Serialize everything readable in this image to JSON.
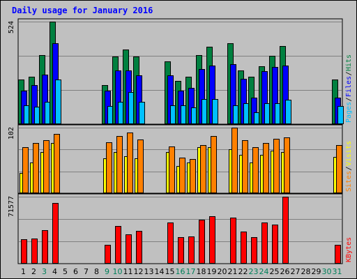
{
  "chart_data": {
    "type": "bar",
    "title": "Daily usage for January 2016",
    "categories": [
      "1",
      "2",
      "3",
      "4",
      "5",
      "6",
      "7",
      "8",
      "9",
      "10",
      "11",
      "12",
      "13",
      "14",
      "15",
      "16",
      "17",
      "18",
      "19",
      "20",
      "21",
      "22",
      "23",
      "24",
      "25",
      "26",
      "27",
      "28",
      "29",
      "30",
      "31"
    ],
    "weekend_days": [
      "3",
      "9",
      "10",
      "16",
      "17",
      "23",
      "24",
      "30",
      "31"
    ],
    "panels": [
      {
        "id": "hits-files-pages",
        "ymax_label": "524",
        "ymax": 524,
        "series": [
          {
            "name": "Hits",
            "color": "#008040",
            "values": [
              228,
              244,
              352,
              524,
              0,
              0,
              0,
              0,
              201,
              344,
              380,
              344,
              0,
              0,
              322,
              222,
              244,
              352,
              396,
              0,
              414,
              273,
              244,
              296,
              350,
              401,
              0,
              0,
              0,
              0,
              228
            ]
          },
          {
            "name": "Files",
            "color": "#0000ff",
            "values": [
              170,
              198,
              253,
              415,
              0,
              0,
              0,
              0,
              170,
              276,
              276,
              249,
              0,
              0,
              250,
              170,
              186,
              280,
              301,
              0,
              307,
              230,
              135,
              270,
              294,
              300,
              0,
              0,
              0,
              0,
              135
            ]
          },
          {
            "name": "Pages",
            "color": "#00c0ff",
            "values": [
              96,
              90,
              113,
              228,
              0,
              0,
              0,
              0,
              93,
              113,
              164,
              113,
              0,
              0,
              98,
              98,
              84,
              130,
              130,
              0,
              96,
              107,
              62,
              107,
              107,
              123,
              0,
              0,
              0,
              0,
              92
            ]
          }
        ]
      },
      {
        "id": "visits-sites",
        "ymax_label": "102",
        "ymax": 102,
        "series": [
          {
            "name": "Visits",
            "color": "#ffff00",
            "values": [
              32,
              48,
              64,
              78,
              0,
              0,
              0,
              0,
              54,
              64,
              57,
              54,
              0,
              0,
              64,
              42,
              48,
              72,
              72,
              0,
              68,
              60,
              48,
              60,
              66,
              64,
              0,
              0,
              0,
              0,
              56
            ]
          },
          {
            "name": "Sites",
            "color": "#ff8000",
            "values": [
              72,
              78,
              83,
              92,
              0,
              0,
              0,
              0,
              79,
              89,
              94,
              84,
              0,
              0,
              73,
              55,
              53,
              75,
              89,
              0,
              102,
              82,
              72,
              78,
              85,
              87,
              0,
              0,
              0,
              0,
              75
            ]
          }
        ]
      },
      {
        "id": "kbytes",
        "ymax_label": "71577",
        "ymax": 71577,
        "series": [
          {
            "name": "KBytes",
            "color": "#ff0000",
            "values": [
              26000,
              27000,
              36000,
              65000,
              0,
              0,
              0,
              0,
              20000,
              40000,
              31000,
              35000,
              0,
              0,
              44000,
              28000,
              29000,
              47000,
              51000,
              0,
              49000,
              34000,
              28000,
              44000,
              42000,
              71577,
              0,
              0,
              0,
              0,
              20000
            ]
          }
        ]
      }
    ],
    "grid": true,
    "legend_position": "right"
  }
}
